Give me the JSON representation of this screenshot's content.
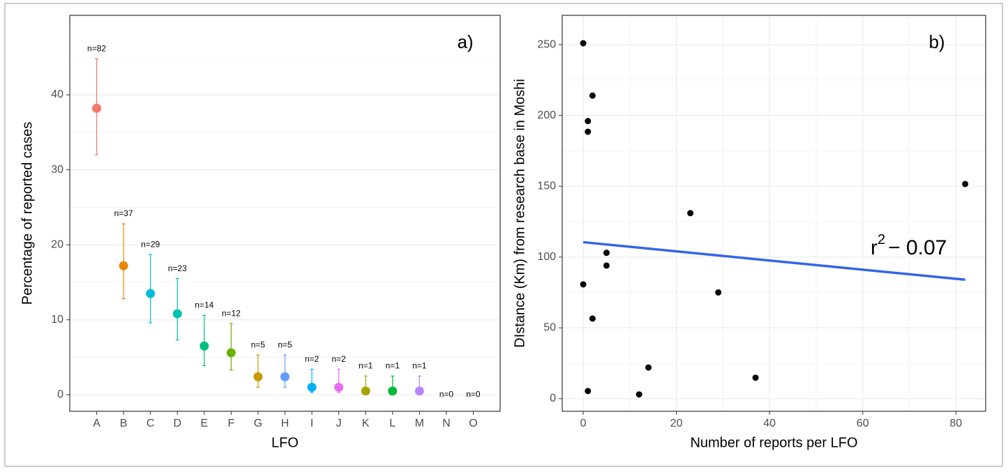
{
  "chart_data": [
    {
      "type": "errorbar",
      "panel_label": "a)",
      "x_label": "LFO",
      "y_label": "Percentage of reported cases",
      "categories": [
        "A",
        "B",
        "C",
        "D",
        "E",
        "F",
        "G",
        "H",
        "I",
        "J",
        "K",
        "L",
        "M",
        "N",
        "O"
      ],
      "values": [
        38.2,
        17.2,
        13.5,
        10.8,
        6.5,
        5.6,
        2.4,
        2.4,
        1.0,
        1.0,
        0.5,
        0.5,
        0.5,
        null,
        null
      ],
      "lower": [
        32.0,
        12.8,
        9.6,
        7.3,
        3.9,
        3.3,
        1.0,
        1.0,
        0.3,
        0.3,
        0.0,
        0.0,
        0.0,
        null,
        null
      ],
      "upper": [
        44.8,
        22.8,
        18.7,
        15.5,
        10.6,
        9.5,
        5.3,
        5.3,
        3.4,
        3.4,
        2.5,
        2.5,
        2.5,
        null,
        null
      ],
      "annotations": [
        "n=82",
        "n=37",
        "n=29",
        "n=23",
        "n=14",
        "n=12",
        "n=5",
        "n=5",
        "n=2",
        "n=2",
        "n=1",
        "n=1",
        "n=1",
        "n=0",
        "n=0"
      ],
      "colors": [
        "#F8766D",
        "#E58700",
        "#00BCD8",
        "#00C0AF",
        "#00BF7D",
        "#6BB100",
        "#C99800",
        "#619CFF",
        "#00B0F6",
        "#E76BF3",
        "#A3A500",
        "#00BA38",
        "#B983FF",
        "#FD61D1",
        "#FF67A4"
      ],
      "ylim": [
        -2.2,
        50.6
      ],
      "yticks": [
        0,
        10,
        20,
        30,
        40
      ],
      "minor_yticks": [
        5,
        15,
        25,
        35,
        45
      ],
      "grid": true
    },
    {
      "type": "scatter",
      "panel_label": "b)",
      "x_label": "Number of reports per LFO",
      "y_label": "DIstance (Km) from research base in Moshi",
      "x": [
        0,
        1,
        1,
        2,
        0,
        2,
        1,
        5,
        5,
        12,
        14,
        23,
        29,
        37,
        82
      ],
      "values": [
        251,
        196,
        188.5,
        214,
        80.7,
        56.6,
        5.4,
        103,
        94,
        3,
        22,
        131,
        75,
        14.8,
        151.6
      ],
      "color": "#000000",
      "fit": {
        "x": [
          0,
          82
        ],
        "values": [
          110.5,
          84
        ],
        "color": "#3366E6"
      },
      "annotation": {
        "text": "r",
        "superscript": "2",
        "suffix": "− 0.07"
      },
      "xlim": [
        -4.5,
        86.4
      ],
      "xticks": [
        0,
        20,
        40,
        60,
        80
      ],
      "minor_xticks": [
        10,
        30,
        50,
        70
      ],
      "ylim": [
        -8.9,
        270.7
      ],
      "yticks": [
        0,
        50,
        100,
        150,
        200,
        250
      ],
      "minor_yticks": [
        25,
        75,
        125,
        175,
        225
      ],
      "grid": true
    }
  ]
}
